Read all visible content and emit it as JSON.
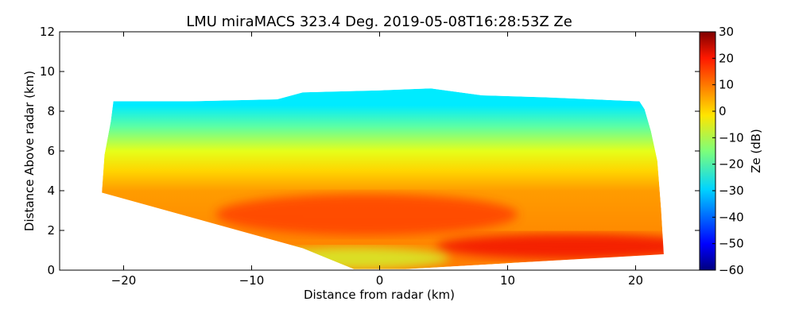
{
  "chart_data": {
    "type": "heatmap",
    "title": "LMU miraMACS 323.4 Deg. 2019-05-08T16:28:53Z  Ze",
    "xlabel": "Distance from radar (km)",
    "ylabel": "Distance Above radar  (km)",
    "xlim": [
      -25,
      25
    ],
    "ylim": [
      0,
      12
    ],
    "xticks": [
      -20,
      -10,
      0,
      10,
      20
    ],
    "yticks": [
      0,
      2,
      4,
      6,
      8,
      10,
      12
    ],
    "colorbar": {
      "label": "Ze (dB)",
      "range": [
        -60,
        30
      ],
      "ticks": [
        -60,
        -50,
        -40,
        -30,
        -20,
        -10,
        0,
        10,
        20,
        30
      ],
      "colormap": "jet"
    },
    "echo_region": {
      "top_km": [
        [
          -20.8,
          8.5
        ],
        [
          -15,
          8.5
        ],
        [
          -8,
          8.6
        ],
        [
          -6,
          8.95
        ],
        [
          0,
          9.05
        ],
        [
          4,
          9.15
        ],
        [
          8,
          8.8
        ],
        [
          13,
          8.7
        ],
        [
          20.3,
          8.5
        ],
        [
          20.7,
          8.1
        ]
      ],
      "right_km": [
        [
          21.2,
          7.0
        ],
        [
          21.7,
          5.5
        ],
        [
          22.0,
          3.0
        ],
        [
          22.2,
          0.8
        ]
      ],
      "bottom_km": [
        [
          22.2,
          0.8
        ],
        [
          10,
          0.35
        ],
        [
          2,
          0.05
        ],
        [
          -2,
          0.05
        ],
        [
          -6,
          1.1
        ],
        [
          -21.7,
          3.9
        ]
      ],
      "left_km": [
        [
          -21.7,
          3.9
        ],
        [
          -21.5,
          5.8
        ],
        [
          -21.0,
          7.5
        ],
        [
          -20.8,
          8.5
        ]
      ]
    },
    "ze_layers_db": [
      {
        "x_center_km": 0,
        "y_center_km": 8.3,
        "value": -28
      },
      {
        "x_center_km": 0,
        "y_center_km": 7.2,
        "value": -18
      },
      {
        "x_center_km": 0,
        "y_center_km": 6.0,
        "value": -6
      },
      {
        "x_center_km": 0,
        "y_center_km": 5.0,
        "value": 0
      },
      {
        "x_center_km": 0,
        "y_center_km": 4.0,
        "value": 5
      },
      {
        "x_center_km": -1,
        "y_center_km": 2.8,
        "value": 14
      },
      {
        "x_center_km": 15,
        "y_center_km": 1.2,
        "value": 20
      },
      {
        "x_center_km": -2,
        "y_center_km": 0.6,
        "value": -8
      }
    ],
    "grid": false
  },
  "colors": {
    "axis": "#000000",
    "background": "#ffffff"
  }
}
